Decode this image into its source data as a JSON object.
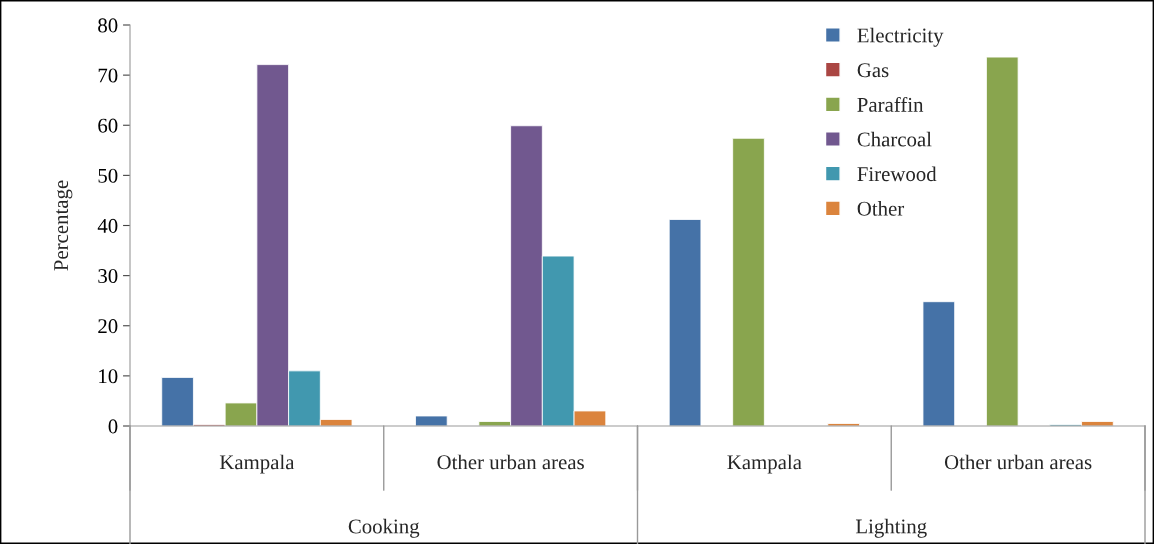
{
  "chart_data": {
    "type": "bar",
    "ylabel": "Percentage",
    "categories": [
      "Kampala",
      "Other urban areas",
      "Kampala",
      "Other urban areas"
    ],
    "annotations": [
      "Cooking",
      "Lighting"
    ],
    "series": [
      {
        "name": "Electricity",
        "color": "#4572a7",
        "values": [
          9.7,
          2,
          41.2,
          24.8
        ]
      },
      {
        "name": "Gas",
        "color": "#aa4643",
        "values": [
          0.3,
          null,
          null,
          null
        ]
      },
      {
        "name": "Paraffin",
        "color": "#89a54e",
        "values": [
          4.6,
          0.9,
          57.4,
          73.6
        ]
      },
      {
        "name": "Charcoal",
        "color": "#71588f",
        "values": [
          72.1,
          59.9,
          null,
          null
        ]
      },
      {
        "name": "Firewood",
        "color": "#4198af",
        "values": [
          11,
          33.9,
          null,
          0.3
        ]
      },
      {
        "name": "Other",
        "color": "#db843d",
        "values": [
          1.3,
          3,
          0.5,
          0.9
        ]
      }
    ],
    "ylim": [
      0,
      80
    ],
    "yticks": [
      0,
      10,
      20,
      30,
      40,
      50,
      60,
      70,
      80
    ],
    "grid": false,
    "legend": "top right"
  }
}
